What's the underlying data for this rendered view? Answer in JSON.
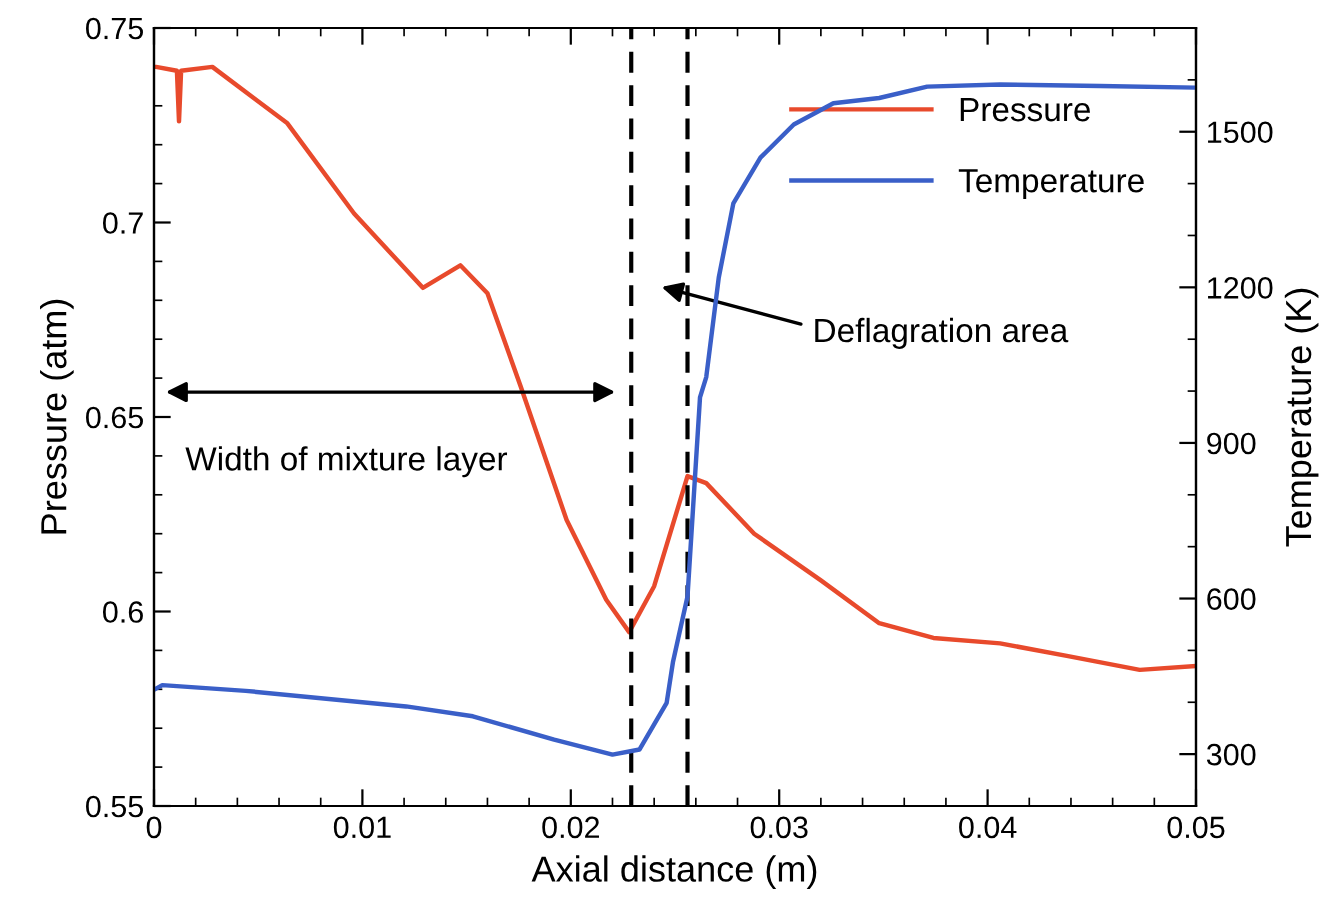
{
  "chart_data": {
    "type": "line",
    "xlabel": "Axial distance (m)",
    "ylabel": "Pressure (atm)",
    "y2label": "Temperature (K)",
    "xlim": [
      0,
      0.05
    ],
    "xticks": [
      0,
      0.01,
      0.02,
      0.03,
      0.04,
      0.05
    ],
    "ylim": [
      0.55,
      0.75
    ],
    "yticks": [
      0.55,
      {
        "value": 0.6,
        "label": "0.6"
      },
      0.65,
      {
        "value": 0.7,
        "label": "0.7"
      },
      0.75
    ],
    "y2lim": [
      200,
      1700
    ],
    "y2ticks": [
      300,
      600,
      900,
      1200,
      1500
    ],
    "legend": "top right",
    "grid": false,
    "line_style": "solid",
    "marker": "none",
    "series": [
      {
        "name": "Pressure",
        "color": "#e84a2c",
        "x": [
          0.0,
          0.0001,
          0.0011,
          0.0012,
          0.0013,
          0.0028,
          0.0064,
          0.0096,
          0.0129,
          0.0147,
          0.016,
          0.0176,
          0.0198,
          0.0217,
          0.0228,
          0.024,
          0.0256,
          0.0265,
          0.0288,
          0.032,
          0.0348,
          0.0374,
          0.0406,
          0.0438,
          0.0473,
          0.05
        ],
        "values": [
          0.74,
          0.74,
          0.739,
          0.726,
          0.739,
          0.74,
          0.7255,
          0.7023,
          0.6832,
          0.689,
          0.6818,
          0.6578,
          0.6235,
          0.603,
          0.5947,
          0.6065,
          0.6348,
          0.633,
          0.62,
          0.608,
          0.597,
          0.5932,
          0.5918,
          0.5886,
          0.585,
          0.586
        ]
      },
      {
        "name": "Temperature",
        "color": "#3a5fc8",
        "axis": "y2",
        "x": [
          0.0,
          0.0004,
          0.0044,
          0.0121,
          0.0153,
          0.0192,
          0.022,
          0.0233,
          0.0246,
          0.0249,
          0.0256,
          0.0262,
          0.0265,
          0.0271,
          0.0278,
          0.0291,
          0.0307,
          0.0326,
          0.0348,
          0.0371,
          0.0406,
          0.0454,
          0.05
        ],
        "values": [
          424,
          433,
          422,
          392,
          373,
          328,
          299,
          309,
          399,
          477,
          604,
          988,
          1027,
          1219,
          1362,
          1450,
          1514,
          1555,
          1565,
          1587,
          1591,
          1588,
          1585
        ]
      }
    ],
    "ref_lines": [
      {
        "axis": "x",
        "value": 0.0229,
        "label": null,
        "color": "#000000",
        "line_style": "dashed"
      },
      {
        "axis": "x",
        "value": 0.0256,
        "label": null,
        "color": "#000000",
        "line_style": "dashed"
      }
    ],
    "annotations": [
      "Width of mixture layer",
      "Deflagration area"
    ]
  }
}
